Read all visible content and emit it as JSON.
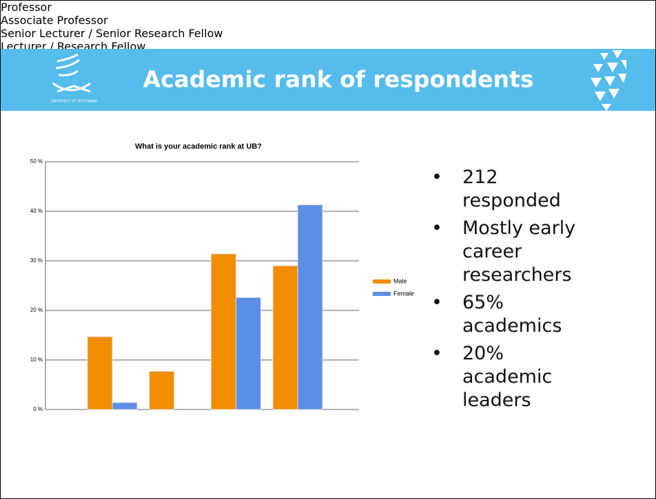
{
  "header": {
    "title": "Academic rank of respondents",
    "logo_text": "UNIVERSITY OF BOTSWANA"
  },
  "bullets": [
    "212 responded",
    "Mostly early career researchers",
    "65% academics",
    "20% academic leaders"
  ],
  "chart_data": {
    "type": "bar",
    "title": "What is your academic rank at UB?",
    "categories": [
      "Professor",
      "Associate Professor",
      "Senior Lecturer /\nSenior Research Fellow",
      "Lecturer /\nResearch Fellow"
    ],
    "series": [
      {
        "name": "Male",
        "color": "#f28c00",
        "values": [
          14.7,
          7.7,
          31.4,
          29.0
        ]
      },
      {
        "name": "Female",
        "color": "#5b8ee6",
        "values": [
          1.4,
          0,
          22.6,
          41.3
        ]
      }
    ],
    "ylim": [
      0,
      50
    ],
    "yticks": [
      {
        "value": 0,
        "label": "0 %"
      },
      {
        "value": 10,
        "label": "10 %"
      },
      {
        "value": 20,
        "label": "20 %"
      },
      {
        "value": 30,
        "label": "30 %"
      },
      {
        "value": 40,
        "label": "40 %"
      },
      {
        "value": 50,
        "label": "50 %"
      }
    ],
    "grid": true,
    "legend": "right"
  }
}
